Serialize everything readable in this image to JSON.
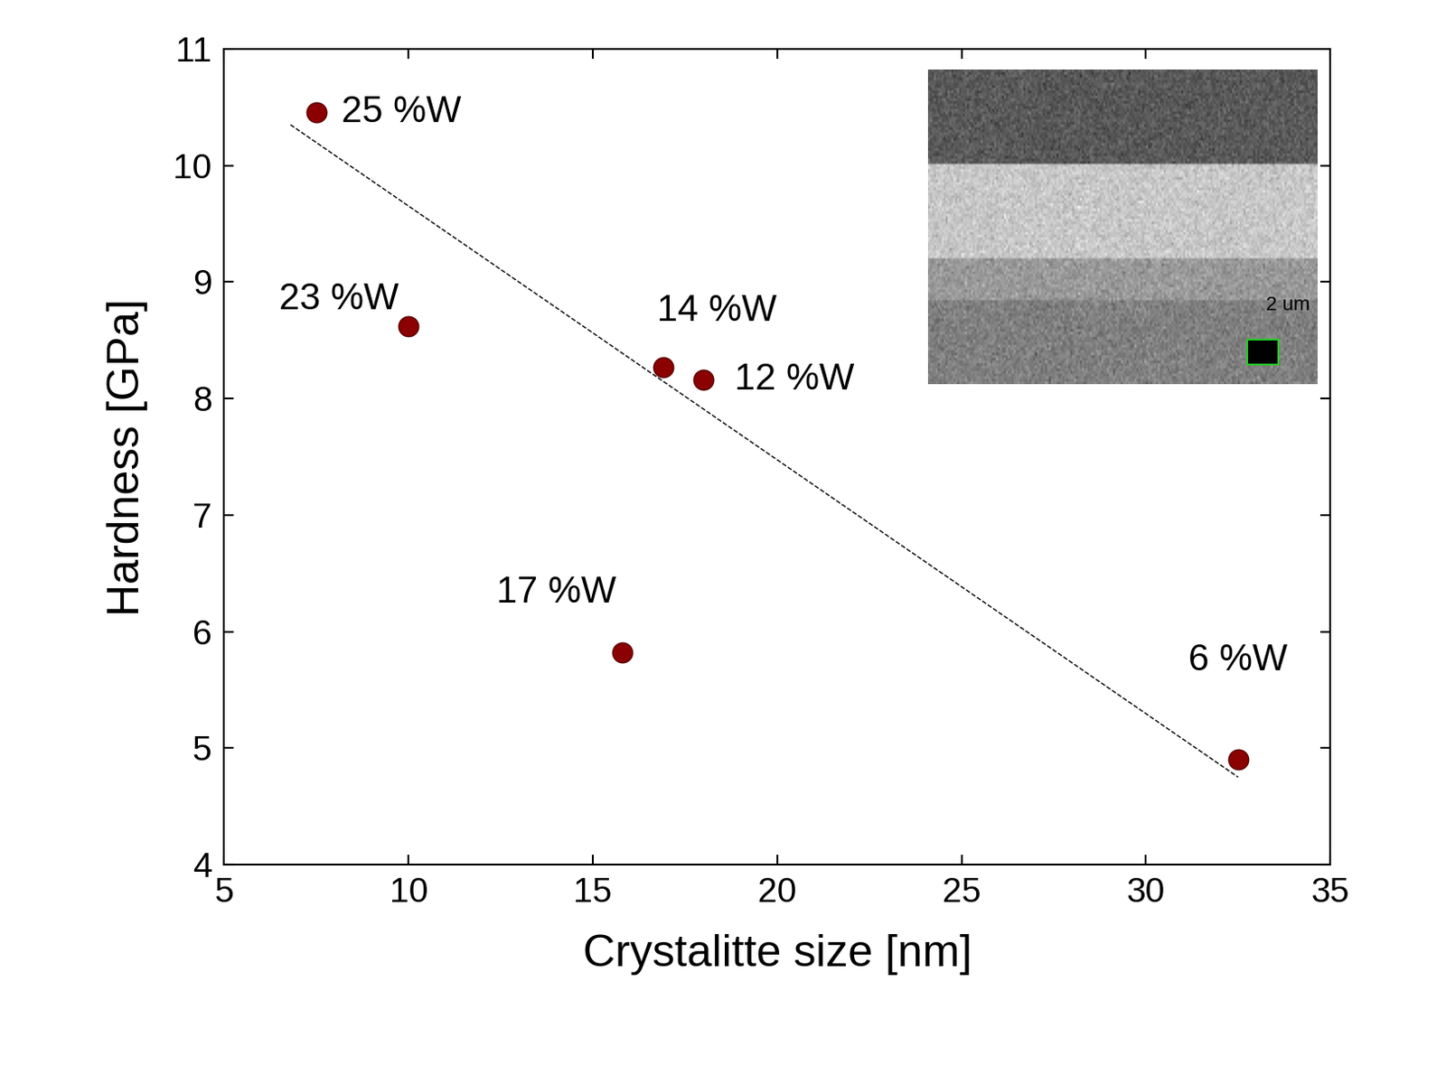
{
  "chart_data": {
    "type": "scatter",
    "x_label": "Crystalitte size [nm]",
    "y_label": "Hardness [GPa]",
    "x": [
      7.5,
      10.0,
      15.8,
      16.9,
      18.0,
      32.5
    ],
    "values": [
      10.46,
      8.62,
      5.82,
      8.27,
      8.16,
      4.9
    ],
    "point_labels": [
      "25 %W",
      "23 %W",
      "17 %W",
      "14 %W",
      "12 %W",
      "6 %W"
    ],
    "color": "#8b0000",
    "marker": "o",
    "series": [
      {
        "type": "line",
        "x": [
          6.8,
          32.5
        ],
        "values": [
          10.35,
          4.75
        ],
        "color": "#000000",
        "line_style": "dashed"
      }
    ],
    "xlim": [
      5,
      35
    ],
    "xticks": [
      5,
      10,
      15,
      20,
      25,
      30,
      35
    ],
    "ylim": [
      4,
      11
    ],
    "yticks": [
      4,
      5,
      6,
      7,
      8,
      9,
      10,
      11
    ],
    "inset_text": "2 um",
    "grid": false
  }
}
